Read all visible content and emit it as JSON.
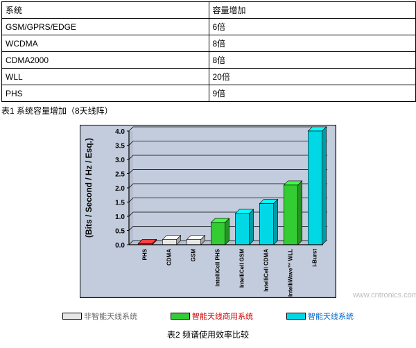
{
  "table1": {
    "columns": [
      "系统",
      "容量增加"
    ],
    "rows": [
      [
        "GSM/GPRS/EDGE",
        "6倍"
      ],
      [
        "WCDMA",
        "8倍"
      ],
      [
        "CDMA2000",
        "8倍"
      ],
      [
        "WLL",
        "20倍"
      ],
      [
        "PHS",
        "9倍"
      ]
    ],
    "caption": "表1 系统容量增加（8天线阵）"
  },
  "chart": {
    "type": "bar",
    "ylabel": "(Bits / Second / Hz / Esq.)",
    "ylabel_fontsize": 12,
    "ylabel_fontweight": "bold",
    "ylim": [
      0.0,
      4.0
    ],
    "ytick_step": 0.5,
    "yticks": [
      "0.0",
      "0.5",
      "1.0",
      "1.5",
      "2.0",
      "2.5",
      "3.0",
      "3.5",
      "4.0"
    ],
    "tick_fontsize": 10,
    "tick_fontweight": "bold",
    "gridline_color": "#000000",
    "axis_color": "#000000",
    "plot_bg": "#c3ccdd",
    "panel_bg": "#cccccc",
    "frame_color": "#000000",
    "bars": [
      {
        "label": "PHS",
        "value": 0.04,
        "color": "#ff3333"
      },
      {
        "label": "CDMA",
        "value": 0.18,
        "color": "#e6e6e6"
      },
      {
        "label": "GSM",
        "value": 0.18,
        "color": "#e6e6e6"
      },
      {
        "label": "IntelliCell PHS",
        "value": 0.78,
        "color": "#33cc33"
      },
      {
        "label": "IntelliCell GSM",
        "value": 1.1,
        "color": "#00d8e6"
      },
      {
        "label": "IntelliCell CDMA",
        "value": 1.45,
        "color": "#00d8e6"
      },
      {
        "label": "IntelliWave™ WLL",
        "value": 2.1,
        "color": "#33cc33"
      },
      {
        "label": "i-Burst",
        "value": 4.0,
        "color": "#00d8e6"
      }
    ],
    "xlabel_fontsize": 8,
    "xlabel_fontweight": "bold",
    "xlabel_angle_deg": 90,
    "bar_gap_ratio": 0.42,
    "bar_3d_depth": 6
  },
  "chart_watermark": "www.cntronics.com",
  "legend": {
    "items": [
      {
        "swatch": "#e6e6e6",
        "label": "非智能天线系统",
        "text_color": "#666666"
      },
      {
        "swatch": "#33cc33",
        "label": "智能天线商用系统",
        "text_color": "#cc0000"
      },
      {
        "swatch": "#00d8e6",
        "label": "智能天线系统",
        "text_color": "#0066cc"
      }
    ],
    "fontsize": 11
  },
  "caption2": "表2 频谱使用效率比较"
}
